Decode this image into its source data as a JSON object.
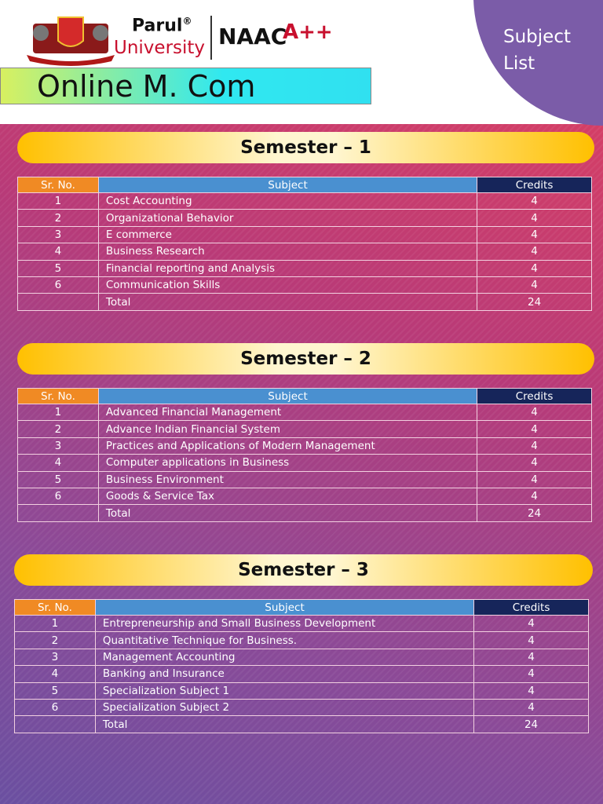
{
  "header": {
    "brand": "Parul",
    "brand_mark": "®",
    "brand_sub": "University",
    "accreditation": "NAAC",
    "grade": "A++",
    "program": "Online M. Com",
    "corner_label": "Subject List"
  },
  "semesters": [
    {
      "title": "Semester – 1",
      "columns": [
        "Sr. No.",
        "Subject",
        "Credits"
      ],
      "rows": [
        [
          "1",
          "Cost Accounting",
          "4"
        ],
        [
          "2",
          "Organizational Behavior",
          "4"
        ],
        [
          "3",
          "E commerce",
          "4"
        ],
        [
          "4",
          "Business Research",
          "4"
        ],
        [
          "5",
          "Financial reporting and Analysis",
          "4"
        ],
        [
          "6",
          "Communication Skills",
          "4"
        ]
      ],
      "total": {
        "label": "Total",
        "credits": "24"
      }
    },
    {
      "title": "Semester – 2",
      "columns": [
        "Sr. No.",
        "Subject",
        "Credits"
      ],
      "rows": [
        [
          "1",
          "Advanced Financial Management",
          "4"
        ],
        [
          "2",
          "Advance Indian Financial System",
          "4"
        ],
        [
          "3",
          "Practices and Applications of Modern Management",
          "4"
        ],
        [
          "4",
          "Computer applications in Business",
          "4"
        ],
        [
          "5",
          "Business Environment",
          "4"
        ],
        [
          "6",
          "Goods & Service Tax",
          "4"
        ]
      ],
      "total": {
        "label": "Total",
        "credits": "24"
      }
    },
    {
      "title": "Semester – 3",
      "columns": [
        "Sr. No.",
        "Subject",
        "Credits"
      ],
      "rows": [
        [
          "1",
          "Entrepreneurship and Small Business Development",
          "4"
        ],
        [
          "2",
          "Quantitative Technique for Business.",
          "4"
        ],
        [
          "3",
          "Management Accounting",
          "4"
        ],
        [
          "4",
          "Banking and Insurance",
          "4"
        ],
        [
          "5",
          "Specialization Subject 1",
          "4"
        ],
        [
          "6",
          "Specialization Subject 2",
          "4"
        ]
      ],
      "total": {
        "label": "Total",
        "credits": "24"
      }
    }
  ]
}
